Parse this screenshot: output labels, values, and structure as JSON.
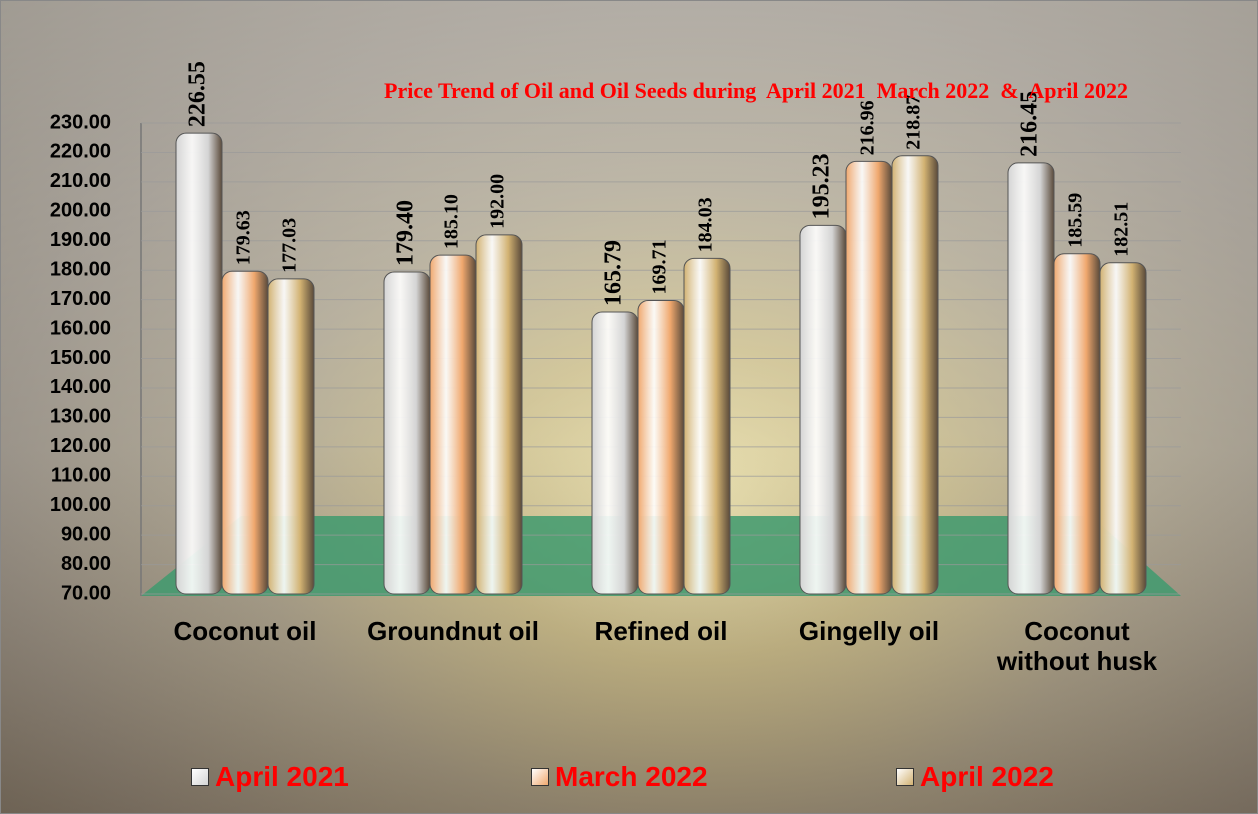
{
  "chart_data": {
    "type": "bar",
    "title": "Price Trend of Oil and Oil Seeds during  April 2021  March 2022  &  April 2022",
    "categories": [
      "Coconut oil",
      "Groundnut oil",
      "Refined oil",
      "Gingelly oil",
      "Coconut without husk"
    ],
    "series": [
      {
        "name": "April 2021",
        "color": "#d4d4d4",
        "values": [
          226.55,
          179.4,
          165.79,
          195.23,
          216.45
        ],
        "value_labels": [
          "226.55",
          "179.40",
          "165.79",
          "195.23",
          "216.45"
        ]
      },
      {
        "name": "March 2022",
        "color": "#f0a86e",
        "values": [
          179.63,
          185.1,
          169.71,
          216.96,
          185.59
        ],
        "value_labels": [
          "179.63",
          "185.10",
          "169.71",
          "216.96",
          "185.59"
        ]
      },
      {
        "name": "April 2022",
        "color": "#d2b272",
        "values": [
          177.03,
          192.0,
          184.03,
          218.87,
          182.51
        ],
        "value_labels": [
          "177.03",
          "192.00",
          "184.03",
          "218.87",
          "182.51"
        ]
      }
    ],
    "ylim": [
      70,
      230
    ],
    "yticks": [
      {
        "value": 70,
        "label": "70.00"
      },
      {
        "value": 80,
        "label": "80.00"
      },
      {
        "value": 90,
        "label": "90.00"
      },
      {
        "value": 100,
        "label": "100.00"
      },
      {
        "value": 110,
        "label": "110.00"
      },
      {
        "value": 120,
        "label": "120.00"
      },
      {
        "value": 130,
        "label": "130.00"
      },
      {
        "value": 140,
        "label": "140.00"
      },
      {
        "value": 150,
        "label": "150.00"
      },
      {
        "value": 160,
        "label": "160.00"
      },
      {
        "value": 170,
        "label": "170.00"
      },
      {
        "value": 180,
        "label": "180.00"
      },
      {
        "value": 190,
        "label": "190.00"
      },
      {
        "value": 200,
        "label": "200.00"
      },
      {
        "value": 210,
        "label": "210.00"
      },
      {
        "value": 220,
        "label": "220.00"
      },
      {
        "value": 230,
        "label": "230.00"
      }
    ],
    "grid": true
  }
}
